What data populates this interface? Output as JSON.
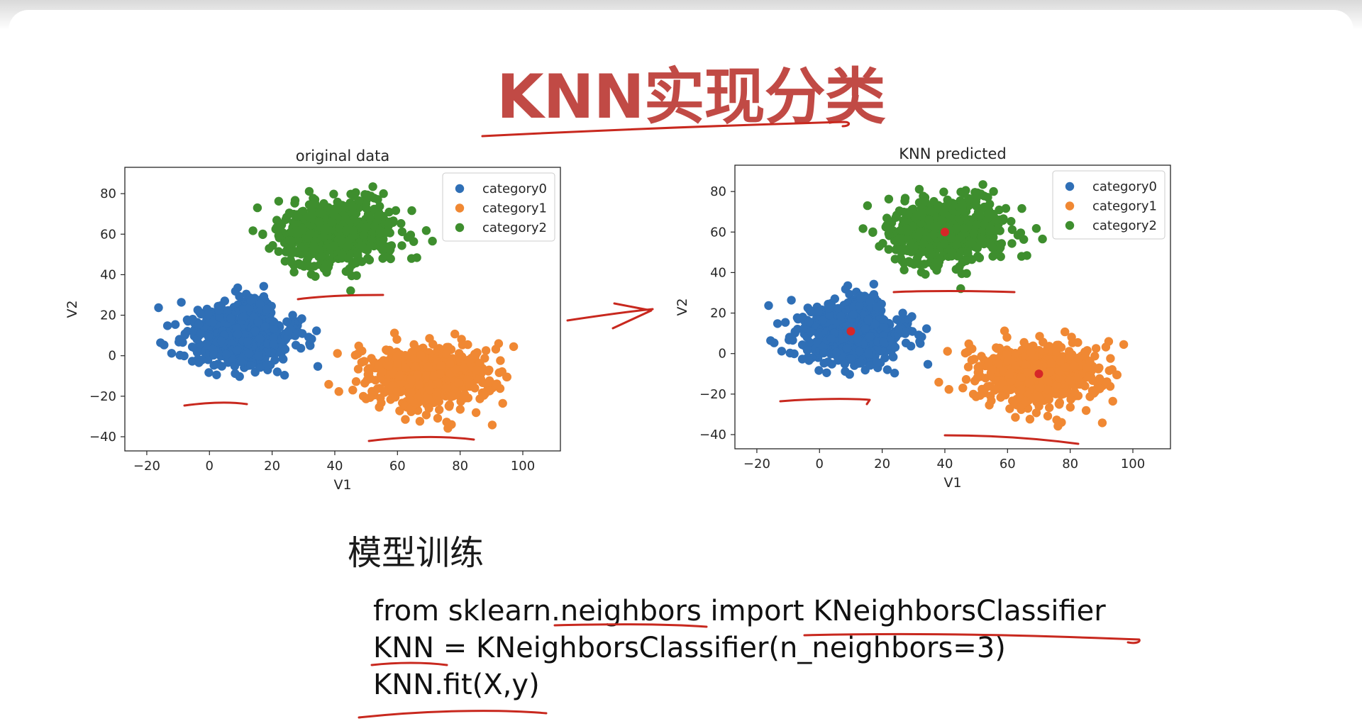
{
  "slide": {
    "title": "KNN实现分类",
    "section_title": "模型训练",
    "code_lines": [
      "from sklearn.neighbors import KNeighborsClassifier",
      "KNN = KNeighborsClassifier(n_neighbors=3)",
      "KNN.fit(X,y)"
    ]
  },
  "colors": {
    "title": "#c14a45",
    "category0": "#2f6fb6",
    "category1": "#f08833",
    "category2": "#3e8e2e",
    "prediction_point": "#d62728",
    "annotation": "#c8281e"
  },
  "chart_data": [
    {
      "type": "scatter",
      "title": "original data",
      "xlabel": "V1",
      "ylabel": "V2",
      "xlim": [
        -27,
        112
      ],
      "ylim": [
        -47,
        93
      ],
      "xticks": [
        -20,
        0,
        20,
        40,
        60,
        80,
        100
      ],
      "yticks": [
        -40,
        -20,
        0,
        20,
        40,
        60,
        80
      ],
      "grid": false,
      "legend_position": "top-right",
      "series": [
        {
          "name": "category0",
          "center": [
            10,
            10
          ],
          "spread": [
            8.5,
            8
          ],
          "count": 650
        },
        {
          "name": "category1",
          "center": [
            70,
            -10
          ],
          "spread": [
            10,
            8
          ],
          "count": 650
        },
        {
          "name": "category2",
          "center": [
            40,
            60
          ],
          "spread": [
            9,
            8
          ],
          "count": 650
        }
      ]
    },
    {
      "type": "scatter",
      "title": "KNN predicted",
      "xlabel": "V1",
      "ylabel": "V2",
      "xlim": [
        -27,
        112
      ],
      "ylim": [
        -47,
        93
      ],
      "xticks": [
        -20,
        0,
        20,
        40,
        60,
        80,
        100
      ],
      "yticks": [
        -40,
        -20,
        0,
        20,
        40,
        60,
        80
      ],
      "grid": false,
      "legend_position": "top-right",
      "series": [
        {
          "name": "category0",
          "center": [
            10,
            10
          ],
          "spread": [
            8.5,
            8
          ],
          "count": 650
        },
        {
          "name": "category1",
          "center": [
            70,
            -10
          ],
          "spread": [
            10,
            8
          ],
          "count": 650
        },
        {
          "name": "category2",
          "center": [
            40,
            60
          ],
          "spread": [
            9,
            8
          ],
          "count": 650
        }
      ],
      "highlight_points": [
        {
          "x": 10,
          "y": 11
        },
        {
          "x": 40,
          "y": 60
        },
        {
          "x": 70,
          "y": -10
        }
      ]
    }
  ]
}
